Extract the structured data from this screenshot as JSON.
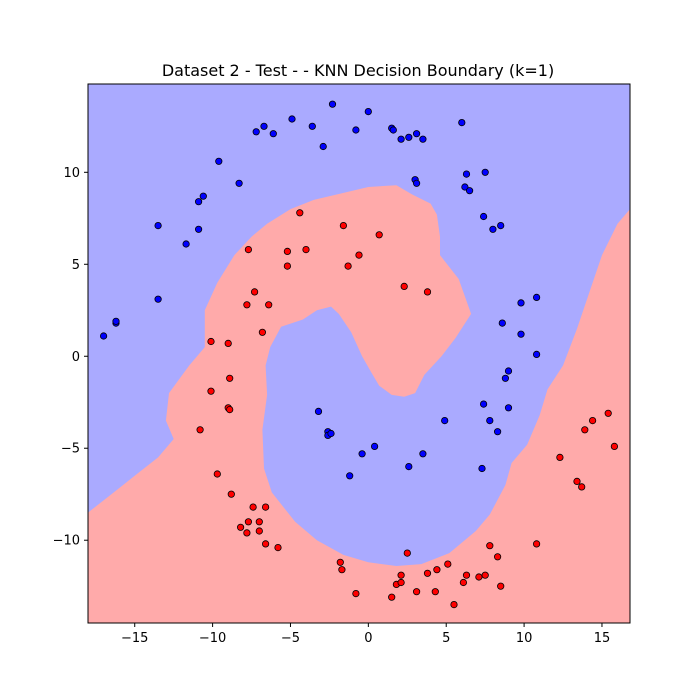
{
  "chart_data": {
    "type": "scatter",
    "title": "Dataset 2 - Test -  - KNN Decision Boundary (k=1)",
    "xlabel": "",
    "ylabel": "",
    "xlim": [
      -18,
      16.8
    ],
    "ylim": [
      -14.5,
      14.8
    ],
    "grid": false,
    "x_ticks": [
      -15,
      -10,
      -5,
      0,
      5,
      10,
      15
    ],
    "x_tick_labels": [
      "−15",
      "−10",
      "−5",
      "0",
      "5",
      "10",
      "15"
    ],
    "y_ticks": [
      -10,
      -5,
      0,
      5,
      10
    ],
    "y_tick_labels": [
      "−10",
      "−5",
      "0",
      "5",
      "10"
    ],
    "colors": {
      "class0_region": "#aaaaff",
      "class1_region": "#ffaaaa",
      "class0_point": "#0000ff",
      "class1_point": "#ff0000",
      "point_edge": "#000000"
    },
    "decision_regions": {
      "background_class": 0,
      "class1_regions": [
        [
          [
            -18,
            -14.5
          ],
          [
            -18,
            -8.5
          ],
          [
            -16.5,
            -7.5
          ],
          [
            -15,
            -6.5
          ],
          [
            -13.5,
            -5.5
          ],
          [
            -12.5,
            -4.5
          ],
          [
            -13,
            -3.5
          ],
          [
            -12.8,
            -2
          ],
          [
            -11.5,
            -0.5
          ],
          [
            -10.5,
            0.5
          ],
          [
            -10.5,
            2.5
          ],
          [
            -9.7,
            4
          ],
          [
            -8.6,
            5.5
          ],
          [
            -7.5,
            6.5
          ],
          [
            -6.5,
            7.2
          ],
          [
            -5,
            8
          ],
          [
            -3.5,
            8.5
          ],
          [
            -2,
            8.8
          ],
          [
            0,
            9.2
          ],
          [
            1.8,
            9.3
          ],
          [
            2.2,
            9.1
          ],
          [
            2.8,
            8.8
          ],
          [
            4,
            8.3
          ],
          [
            4.4,
            7.7
          ],
          [
            4.6,
            6.5
          ],
          [
            4.6,
            5.5
          ],
          [
            5.8,
            4.2
          ],
          [
            6.6,
            2.3
          ],
          [
            5.6,
            1
          ],
          [
            4.7,
            0
          ],
          [
            3.6,
            -1
          ],
          [
            3,
            -2
          ],
          [
            2.3,
            -2.2
          ],
          [
            1.5,
            -2.1
          ],
          [
            0.7,
            -1.6
          ],
          [
            0.2,
            -0.9
          ],
          [
            -0.4,
            0
          ],
          [
            -1.1,
            1.3
          ],
          [
            -1.9,
            2.3
          ],
          [
            -2.4,
            2.7
          ],
          [
            -3.3,
            2.5
          ],
          [
            -4.2,
            2.0
          ],
          [
            -5.6,
            1.6
          ],
          [
            -6.3,
            0.5
          ],
          [
            -6.6,
            -0.5
          ],
          [
            -6.5,
            -2.1
          ],
          [
            -6.8,
            -4
          ],
          [
            -6.7,
            -6.1
          ],
          [
            -6.2,
            -7.4
          ],
          [
            -4.7,
            -9
          ],
          [
            -3.3,
            -10
          ],
          [
            -1.6,
            -10.8
          ],
          [
            0,
            -11.2
          ],
          [
            1.8,
            -11.4
          ],
          [
            3.4,
            -11.3
          ],
          [
            5.2,
            -10.7
          ],
          [
            6.9,
            -9.5
          ],
          [
            7.8,
            -8.6
          ],
          [
            8.8,
            -7
          ],
          [
            9.2,
            -5.8
          ],
          [
            10.2,
            -4.8
          ],
          [
            11,
            -3.2
          ],
          [
            11.5,
            -1.8
          ],
          [
            12.5,
            -0.5
          ],
          [
            13.4,
            1.5
          ],
          [
            14.2,
            3.5
          ],
          [
            15.0,
            5.5
          ],
          [
            16.0,
            7.2
          ],
          [
            16.8,
            8.0
          ],
          [
            16.8,
            -14.5
          ]
        ]
      ]
    },
    "series": [
      {
        "class": 0,
        "points": [
          [
            -17,
            1.1
          ],
          [
            -16.2,
            1.8
          ],
          [
            -16.2,
            1.9
          ],
          [
            -13.5,
            3.1
          ],
          [
            -13.5,
            7.1
          ],
          [
            -11.7,
            6.1
          ],
          [
            -10.9,
            6.9
          ],
          [
            -10.9,
            8.4
          ],
          [
            -10.6,
            8.7
          ],
          [
            -9.6,
            10.6
          ],
          [
            -8.3,
            9.4
          ],
          [
            -7.2,
            12.2
          ],
          [
            -6.7,
            12.5
          ],
          [
            -6.1,
            12.1
          ],
          [
            -4.9,
            12.9
          ],
          [
            -3.6,
            12.5
          ],
          [
            -2.9,
            11.4
          ],
          [
            -2.3,
            13.7
          ],
          [
            -0.8,
            12.3
          ],
          [
            0,
            13.3
          ],
          [
            1.5,
            12.4
          ],
          [
            1.6,
            12.3
          ],
          [
            2.1,
            11.8
          ],
          [
            2.6,
            11.9
          ],
          [
            3.1,
            12.1
          ],
          [
            3.5,
            11.8
          ],
          [
            3.0,
            9.6
          ],
          [
            3.1,
            9.4
          ],
          [
            6.0,
            12.7
          ],
          [
            6.2,
            9.2
          ],
          [
            6.3,
            9.9
          ],
          [
            6.5,
            9.0
          ],
          [
            7.5,
            10.0
          ],
          [
            7.4,
            7.6
          ],
          [
            8.0,
            6.9
          ],
          [
            8.5,
            7.1
          ],
          [
            8.6,
            1.8
          ],
          [
            9.8,
            2.9
          ],
          [
            10.8,
            3.2
          ],
          [
            9.8,
            1.2
          ],
          [
            10.8,
            0.1
          ],
          [
            9.0,
            -0.8
          ],
          [
            8.8,
            -1.2
          ],
          [
            7.4,
            -2.6
          ],
          [
            7.8,
            -3.5
          ],
          [
            8.3,
            -4.1
          ],
          [
            9.0,
            -2.8
          ],
          [
            7.3,
            -6.1
          ],
          [
            -3.2,
            -3
          ],
          [
            -2.6,
            -4.1
          ],
          [
            -2.6,
            -4.3
          ],
          [
            -2.4,
            -4.2
          ],
          [
            -1.2,
            -6.5
          ],
          [
            -0.4,
            -5.3
          ],
          [
            0.4,
            -4.9
          ],
          [
            2.6,
            -6.0
          ],
          [
            3.5,
            -5.3
          ],
          [
            4.9,
            -3.5
          ]
        ]
      },
      {
        "class": 1,
        "points": [
          [
            -4.4,
            7.8
          ],
          [
            -1.6,
            7.1
          ],
          [
            0.7,
            6.6
          ],
          [
            -7.7,
            5.8
          ],
          [
            -5.2,
            5.7
          ],
          [
            -4.0,
            5.8
          ],
          [
            -0.6,
            5.5
          ],
          [
            -5.2,
            4.9
          ],
          [
            -1.3,
            4.9
          ],
          [
            2.3,
            3.8
          ],
          [
            3.8,
            3.5
          ],
          [
            -7.3,
            3.5
          ],
          [
            -7.8,
            2.8
          ],
          [
            -6.4,
            2.8
          ],
          [
            -6.8,
            1.3
          ],
          [
            -10.1,
            0.8
          ],
          [
            -9.0,
            0.7
          ],
          [
            -8.9,
            -1.2
          ],
          [
            -10.1,
            -1.9
          ],
          [
            -9.0,
            -2.8
          ],
          [
            -8.9,
            -2.9
          ],
          [
            -10.8,
            -4
          ],
          [
            -9.7,
            -6.4
          ],
          [
            -8.8,
            -7.5
          ],
          [
            -7.4,
            -8.2
          ],
          [
            -6.6,
            -8.2
          ],
          [
            -7.7,
            -9.0
          ],
          [
            -7.0,
            -9.0
          ],
          [
            -8.2,
            -9.3
          ],
          [
            -7.8,
            -9.6
          ],
          [
            -7.0,
            -9.5
          ],
          [
            -6.6,
            -10.2
          ],
          [
            -5.8,
            -10.4
          ],
          [
            -1.8,
            -11.2
          ],
          [
            -1.7,
            -11.6
          ],
          [
            -0.8,
            -12.9
          ],
          [
            1.5,
            -13.1
          ],
          [
            1.8,
            -12.4
          ],
          [
            2.1,
            -12.3
          ],
          [
            2.1,
            -11.9
          ],
          [
            2.5,
            -10.7
          ],
          [
            3.1,
            -12.8
          ],
          [
            3.8,
            -11.8
          ],
          [
            4.3,
            -12.8
          ],
          [
            4.4,
            -11.6
          ],
          [
            5.1,
            -11.3
          ],
          [
            5.5,
            -13.5
          ],
          [
            6.1,
            -12.3
          ],
          [
            6.3,
            -11.9
          ],
          [
            7.1,
            -12.0
          ],
          [
            7.5,
            -11.9
          ],
          [
            7.8,
            -10.3
          ],
          [
            8.3,
            -10.9
          ],
          [
            8.5,
            -12.5
          ],
          [
            10.8,
            -10.2
          ],
          [
            12.3,
            -5.5
          ],
          [
            13.4,
            -6.8
          ],
          [
            13.7,
            -7.1
          ],
          [
            13.9,
            -4.0
          ],
          [
            14.4,
            -3.5
          ],
          [
            15.4,
            -3.1
          ],
          [
            15.8,
            -4.9
          ]
        ]
      }
    ]
  }
}
